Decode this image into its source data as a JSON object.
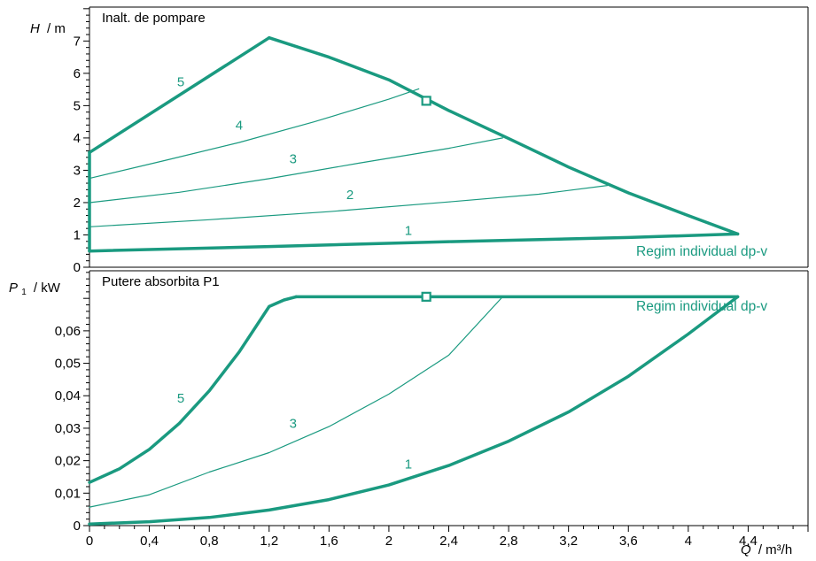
{
  "colors": {
    "curve": "#1a9a80",
    "grid": "#000000",
    "background": "#ffffff"
  },
  "chart_data": [
    {
      "type": "line",
      "title": "Inalt. de pompare",
      "ylabel_symbol": "H",
      "ylabel_unit": "/ m",
      "xlabel_symbol": "Q",
      "xlabel_unit": "/ m³/h",
      "xlim": [
        0,
        4.8
      ],
      "ylim": [
        0,
        8.05
      ],
      "x_ticks": [
        "0",
        "0,4",
        "0,8",
        "1,2",
        "1,6",
        "2",
        "2,4",
        "2,8",
        "3,2",
        "3,6",
        "4",
        "4,4"
      ],
      "y_ticks": [
        "0",
        "1",
        "2",
        "3",
        "4",
        "5",
        "6",
        "7"
      ],
      "mode_label": "Regim individual dp-v",
      "grid": false,
      "series": [
        {
          "name": "1",
          "label_at": [
            2.13,
            1.13
          ],
          "weight": "thick",
          "points": [
            [
              0,
              0.5
            ],
            [
              1.2,
              0.64
            ],
            [
              2.4,
              0.79
            ],
            [
              3.6,
              0.92
            ],
            [
              4.33,
              1.03
            ]
          ]
        },
        {
          "name": "2",
          "label_at": [
            1.74,
            2.25
          ],
          "weight": "thin",
          "points": [
            [
              0,
              1.25
            ],
            [
              0.8,
              1.47
            ],
            [
              1.6,
              1.72
            ],
            [
              2.4,
              2.02
            ],
            [
              3.0,
              2.26
            ],
            [
              3.46,
              2.53
            ]
          ]
        },
        {
          "name": "3",
          "label_at": [
            1.36,
            3.35
          ],
          "weight": "thin",
          "points": [
            [
              0,
              2.0
            ],
            [
              0.6,
              2.32
            ],
            [
              1.2,
              2.74
            ],
            [
              1.8,
              3.22
            ],
            [
              2.4,
              3.68
            ],
            [
              2.76,
              4.0
            ]
          ]
        },
        {
          "name": "4",
          "label_at": [
            1.0,
            4.4
          ],
          "weight": "thin",
          "points": [
            [
              0,
              2.75
            ],
            [
              0.5,
              3.3
            ],
            [
              1.0,
              3.86
            ],
            [
              1.5,
              4.5
            ],
            [
              2.0,
              5.2
            ],
            [
              2.2,
              5.52
            ]
          ]
        },
        {
          "name": "5",
          "label_at": [
            0.61,
            5.74
          ],
          "weight": "thick",
          "points": [
            [
              0,
              3.55
            ],
            [
              1.2,
              7.1
            ]
          ]
        },
        {
          "name": "max",
          "weight": "thick",
          "points": [
            [
              1.2,
              7.1
            ],
            [
              1.6,
              6.5
            ],
            [
              2.0,
              5.8
            ],
            [
              2.4,
              4.85
            ],
            [
              2.8,
              3.98
            ],
            [
              3.2,
              3.1
            ],
            [
              3.6,
              2.3
            ],
            [
              4.0,
              1.6
            ],
            [
              4.33,
              1.03
            ]
          ]
        },
        {
          "name": "left",
          "weight": "thick",
          "points": [
            [
              0,
              0.5
            ],
            [
              0,
              3.55
            ]
          ]
        }
      ],
      "marker": {
        "x": 2.25,
        "y": 5.15,
        "shape": "square"
      }
    },
    {
      "type": "line",
      "title": "Putere absorbita P1",
      "ylabel_symbol": "P",
      "ylabel_subscript": "1",
      "ylabel_unit": "/ kW",
      "xlabel_symbol": "Q",
      "xlabel_unit": "/ m³/h",
      "xlim": [
        0,
        4.8
      ],
      "ylim": [
        0,
        0.0785
      ],
      "y_ticks": [
        "0",
        "0,01",
        "0,02",
        "0,03",
        "0,04",
        "0,05",
        "0,06"
      ],
      "mode_label": "Regim individual dp-v",
      "grid": false,
      "series": [
        {
          "name": "1",
          "label_at": [
            2.13,
            0.019
          ],
          "weight": "thick",
          "points": [
            [
              0,
              0.0005
            ],
            [
              0.4,
              0.0012
            ],
            [
              0.8,
              0.0025
            ],
            [
              1.2,
              0.0048
            ],
            [
              1.6,
              0.008
            ],
            [
              2.0,
              0.0125
            ],
            [
              2.4,
              0.0185
            ],
            [
              2.8,
              0.026
            ],
            [
              3.2,
              0.035
            ],
            [
              3.6,
              0.046
            ],
            [
              4.0,
              0.059
            ],
            [
              4.33,
              0.0705
            ]
          ]
        },
        {
          "name": "3",
          "label_at": [
            1.36,
            0.0315
          ],
          "weight": "thin",
          "points": [
            [
              0,
              0.0057
            ],
            [
              0.4,
              0.0095
            ],
            [
              0.8,
              0.0165
            ],
            [
              1.2,
              0.0225
            ],
            [
              1.6,
              0.0305
            ],
            [
              2.0,
              0.0405
            ],
            [
              2.4,
              0.0525
            ],
            [
              2.76,
              0.0705
            ]
          ]
        },
        {
          "name": "5",
          "label_at": [
            0.61,
            0.0392
          ],
          "weight": "thick",
          "points": [
            [
              0,
              0.0133
            ],
            [
              0.2,
              0.0175
            ],
            [
              0.4,
              0.0235
            ],
            [
              0.6,
              0.0315
            ],
            [
              0.8,
              0.0415
            ],
            [
              1.0,
              0.0535
            ],
            [
              1.2,
              0.0675
            ],
            [
              1.3,
              0.0695
            ],
            [
              1.38,
              0.0705
            ]
          ]
        },
        {
          "name": "max",
          "weight": "thick",
          "points": [
            [
              1.38,
              0.0705
            ],
            [
              4.33,
              0.0705
            ]
          ]
        }
      ],
      "marker": {
        "x": 2.25,
        "y": 0.0705,
        "shape": "square"
      }
    }
  ]
}
